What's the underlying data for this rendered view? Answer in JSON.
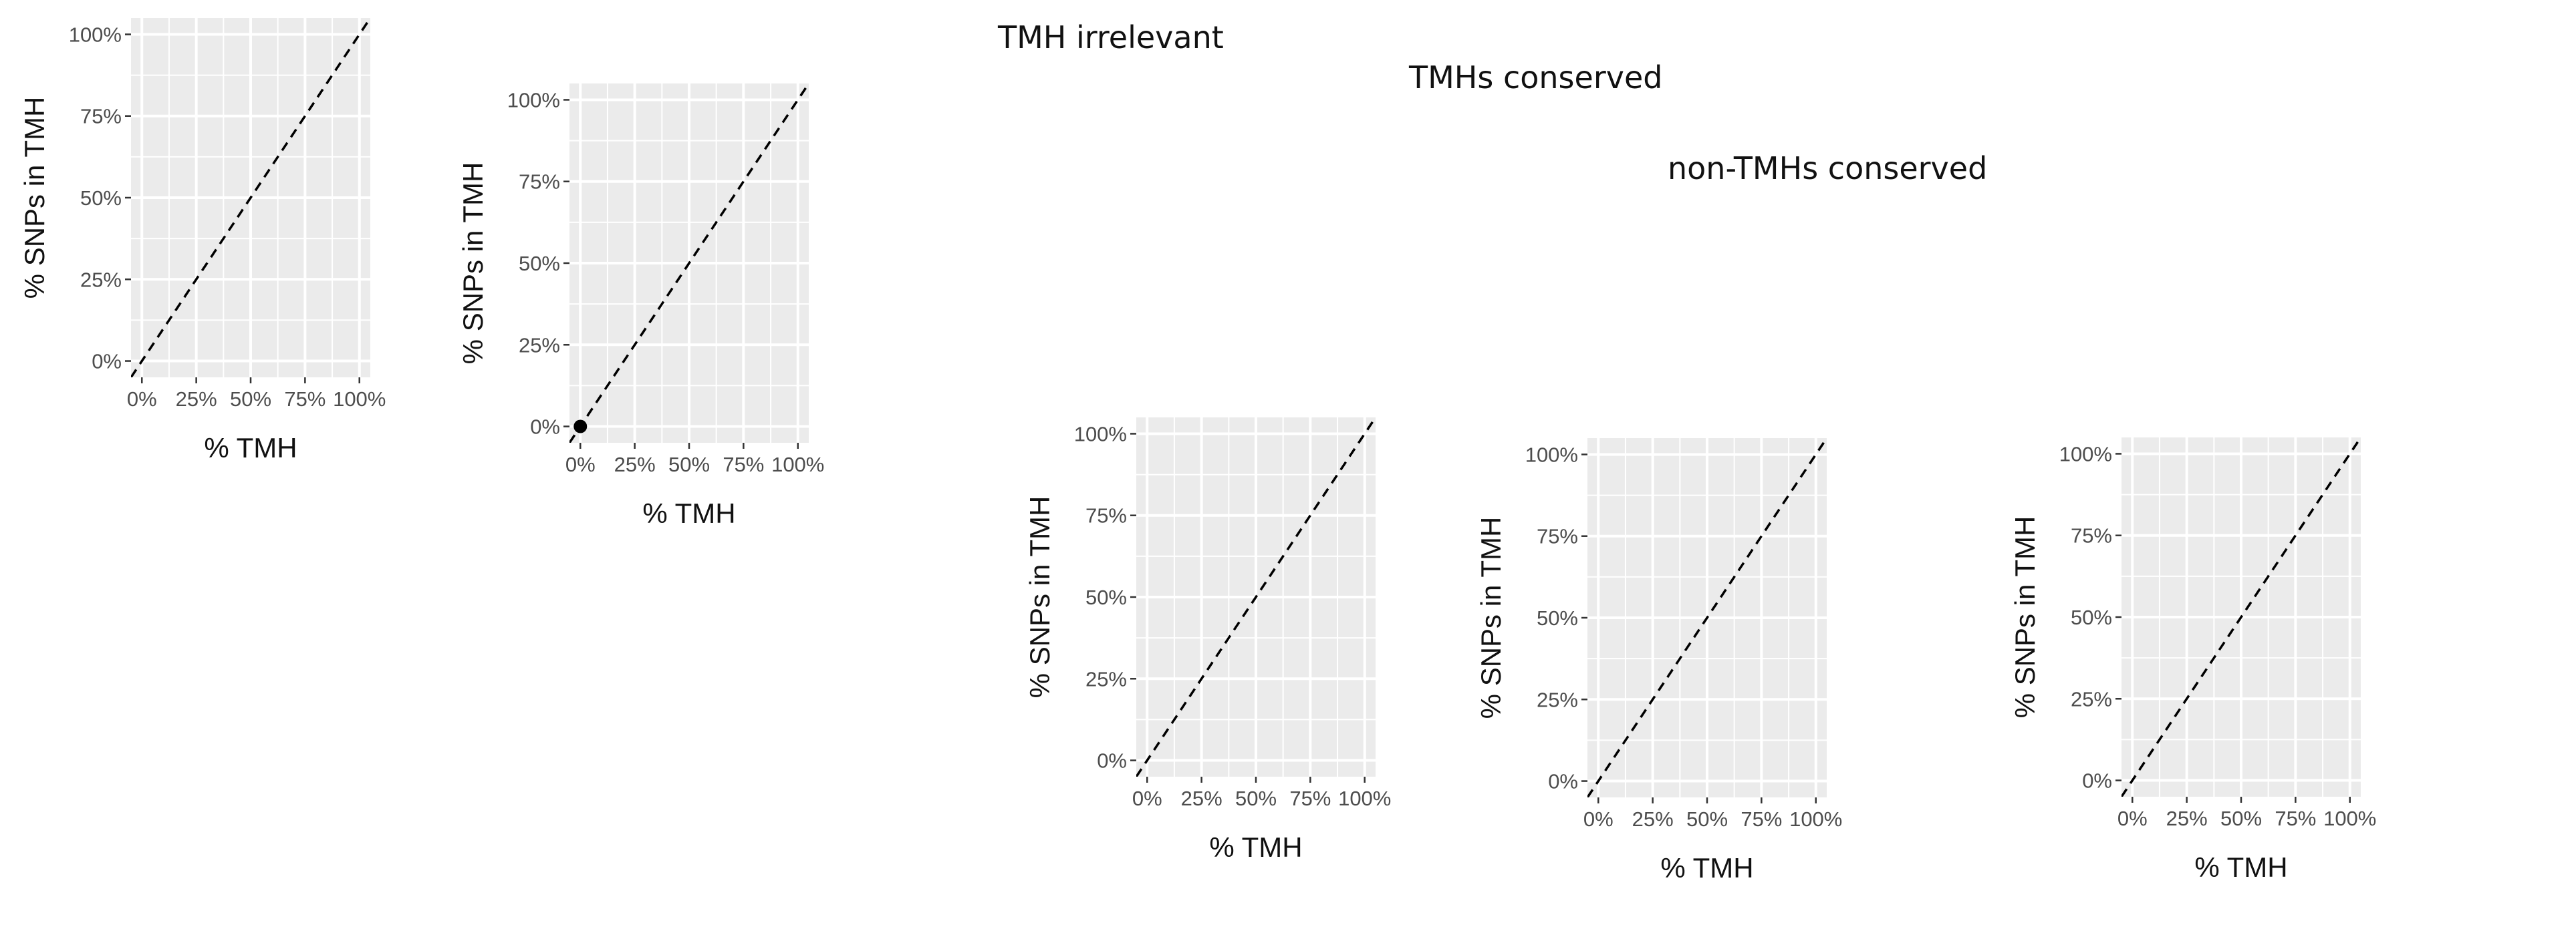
{
  "titles": {
    "tmh_irrelevant": "TMH irrelevant",
    "tmhs_conserved": "TMHs conserved",
    "non_tmhs_conserved": "non-TMHs conserved"
  },
  "colors": {
    "panel_background": "#ebebeb",
    "grid_line": "#ffffff",
    "reference_line": "#000000",
    "point": "#000000",
    "tick_label": "#4d4d4d",
    "axis_title": "#111111"
  },
  "chart_data": [
    {
      "type": "scatter",
      "xlabel": "% TMH",
      "ylabel": "% SNPs in TMH",
      "xlim": [
        0,
        100
      ],
      "ylim": [
        0,
        100
      ],
      "x_ticks": [
        "0%",
        "25%",
        "50%",
        "75%",
        "100%"
      ],
      "y_ticks": [
        "0%",
        "25%",
        "50%",
        "75%",
        "100%"
      ],
      "points": [],
      "reference_line": "y = x (dashed)",
      "grid": true
    },
    {
      "type": "scatter",
      "xlabel": "% TMH",
      "ylabel": "% SNPs in TMH",
      "xlim": [
        0,
        100
      ],
      "ylim": [
        0,
        100
      ],
      "x_ticks": [
        "0%",
        "25%",
        "50%",
        "75%",
        "100%"
      ],
      "y_ticks": [
        "0%",
        "25%",
        "50%",
        "75%",
        "100%"
      ],
      "points": [
        {
          "x": 0,
          "y": 0
        }
      ],
      "reference_line": "y = x (dashed)",
      "grid": true
    },
    {
      "type": "scatter",
      "xlabel": "% TMH",
      "ylabel": "% SNPs in TMH",
      "xlim": [
        0,
        100
      ],
      "ylim": [
        0,
        100
      ],
      "x_ticks": [
        "0%",
        "25%",
        "50%",
        "75%",
        "100%"
      ],
      "y_ticks": [
        "0%",
        "25%",
        "50%",
        "75%",
        "100%"
      ],
      "points": [],
      "reference_line": "y = x (dashed)",
      "grid": true
    },
    {
      "type": "scatter",
      "xlabel": "% TMH",
      "ylabel": "% SNPs in TMH",
      "xlim": [
        0,
        100
      ],
      "ylim": [
        0,
        100
      ],
      "x_ticks": [
        "0%",
        "25%",
        "50%",
        "75%",
        "100%"
      ],
      "y_ticks": [
        "0%",
        "25%",
        "50%",
        "75%",
        "100%"
      ],
      "points": [],
      "reference_line": "y = x (dashed)",
      "grid": true
    },
    {
      "type": "scatter",
      "xlabel": "% TMH",
      "ylabel": "% SNPs in TMH",
      "xlim": [
        0,
        100
      ],
      "ylim": [
        0,
        100
      ],
      "x_ticks": [
        "0%",
        "25%",
        "50%",
        "75%",
        "100%"
      ],
      "y_ticks": [
        "0%",
        "25%",
        "50%",
        "75%",
        "100%"
      ],
      "points": [],
      "reference_line": "y = x (dashed)",
      "grid": true
    }
  ]
}
